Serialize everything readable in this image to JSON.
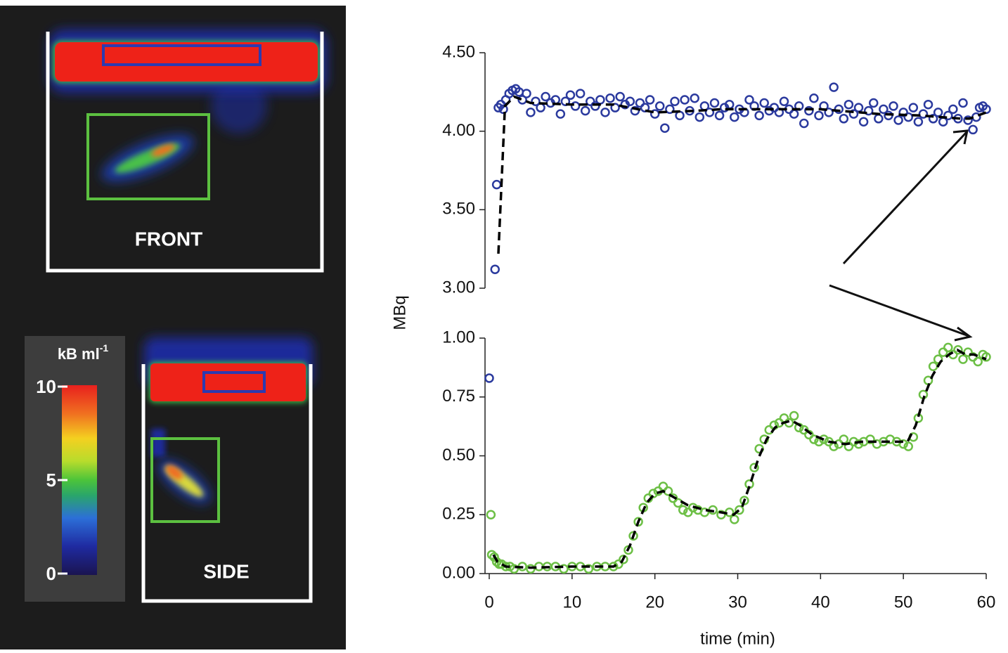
{
  "images": {
    "front_label": "FRONT",
    "side_label": "SIDE",
    "colorbar": {
      "unit": "kB ml",
      "unit_sup": "-1",
      "ticks": [
        0,
        5,
        10
      ],
      "lim": [
        0,
        10
      ]
    }
  },
  "chart_data": [
    {
      "type": "scatter",
      "xlim": [
        0,
        60
      ],
      "ylim": [
        3.0,
        4.5
      ],
      "yticks": [
        {
          "value": 3.0,
          "label": "3.00"
        },
        {
          "value": 3.5,
          "label": "3.50"
        },
        {
          "value": 4.0,
          "label": "4.00"
        },
        {
          "value": 4.5,
          "label": "4.50"
        }
      ],
      "series": [
        {
          "kind": "scatter",
          "color": "#2b3a9e",
          "x": [
            0.7,
            0.9,
            1.1,
            1.4,
            1.7,
            2.0,
            2.4,
            2.8,
            3.2,
            3.6,
            4.0,
            4.5,
            5.0,
            5.6,
            6.2,
            6.8,
            7.4,
            8.0,
            8.6,
            9.2,
            9.8,
            10.4,
            11.0,
            11.6,
            12.2,
            12.8,
            13.4,
            14.0,
            14.6,
            15.2,
            15.8,
            16.4,
            17.0,
            17.6,
            18.2,
            18.8,
            19.4,
            20.0,
            20.6,
            21.2,
            21.8,
            22.4,
            23.0,
            23.6,
            24.2,
            24.8,
            25.4,
            26.0,
            26.6,
            27.2,
            27.8,
            28.4,
            29.0,
            29.6,
            30.2,
            30.8,
            31.4,
            32.0,
            32.6,
            33.2,
            33.8,
            34.4,
            35.0,
            35.6,
            36.2,
            36.8,
            37.4,
            38.0,
            38.6,
            39.2,
            39.8,
            40.4,
            41.0,
            41.6,
            42.2,
            42.8,
            43.4,
            44.0,
            44.6,
            45.2,
            45.8,
            46.4,
            47.0,
            47.6,
            48.2,
            48.8,
            49.4,
            50.0,
            50.6,
            51.2,
            51.8,
            52.4,
            53.0,
            53.6,
            54.2,
            54.8,
            55.4,
            56.0,
            56.6,
            57.2,
            57.8,
            58.4,
            58.8,
            59.2,
            59.6,
            60.0
          ],
          "values": [
            3.12,
            3.66,
            4.15,
            4.17,
            4.14,
            4.2,
            4.24,
            4.26,
            4.27,
            4.25,
            4.2,
            4.24,
            4.12,
            4.19,
            4.15,
            4.22,
            4.18,
            4.2,
            4.11,
            4.19,
            4.23,
            4.16,
            4.24,
            4.13,
            4.19,
            4.16,
            4.2,
            4.12,
            4.21,
            4.15,
            4.22,
            4.17,
            4.19,
            4.13,
            4.18,
            4.15,
            4.2,
            4.11,
            4.16,
            4.02,
            4.14,
            4.19,
            4.1,
            4.2,
            4.13,
            4.21,
            4.09,
            4.16,
            4.12,
            4.18,
            4.1,
            4.15,
            4.17,
            4.09,
            4.14,
            4.12,
            4.2,
            4.16,
            4.1,
            4.18,
            4.13,
            4.15,
            4.12,
            4.19,
            4.14,
            4.11,
            4.16,
            4.05,
            4.13,
            4.21,
            4.1,
            4.16,
            4.12,
            4.28,
            4.14,
            4.08,
            4.17,
            4.11,
            4.15,
            4.06,
            4.13,
            4.18,
            4.08,
            4.14,
            4.1,
            4.16,
            4.07,
            4.12,
            4.09,
            4.15,
            4.06,
            4.11,
            4.17,
            4.08,
            4.12,
            4.06,
            4.1,
            4.14,
            4.08,
            4.18,
            4.07,
            4.01,
            4.09,
            4.15,
            4.16,
            4.14
          ]
        },
        {
          "kind": "line",
          "color": "#000000",
          "x": [
            1.1,
            1.9,
            3,
            5,
            10,
            15,
            20,
            25,
            28,
            35,
            40,
            47,
            52,
            57,
            58,
            60
          ],
          "values": [
            3.22,
            4.16,
            4.22,
            4.18,
            4.17,
            4.17,
            4.12,
            4.13,
            4.14,
            4.14,
            4.14,
            4.11,
            4.1,
            4.08,
            4.08,
            4.12
          ]
        }
      ]
    },
    {
      "type": "scatter",
      "xlim": [
        0,
        60
      ],
      "ylim": [
        0,
        1
      ],
      "xlabel": "time (min)",
      "ylabel": "MBq",
      "xticks": [
        0,
        10,
        20,
        30,
        40,
        50,
        60
      ],
      "yticks": [
        {
          "value": 0,
          "label": "0.00"
        },
        {
          "value": 0.25,
          "label": "0.25"
        },
        {
          "value": 0.5,
          "label": "0.50"
        },
        {
          "value": 0.75,
          "label": "0.75"
        },
        {
          "value": 1,
          "label": "1.00"
        }
      ],
      "series": [
        {
          "kind": "scatter",
          "color": "#6cbf45",
          "x": [
            0.2,
            0.3,
            0.6,
            0.9,
            1.2,
            1.5,
            2,
            2.5,
            3,
            4,
            5,
            6,
            7,
            8,
            9,
            10,
            11,
            12,
            13,
            14,
            15,
            15.6,
            16.2,
            16.8,
            17.4,
            18,
            18.6,
            19.2,
            19.8,
            20.4,
            21,
            21.6,
            22.2,
            22.8,
            23.4,
            24,
            24.6,
            25.2,
            26,
            27,
            28,
            29,
            29.6,
            30.2,
            30.8,
            31.4,
            32,
            32.6,
            33.2,
            33.8,
            34.4,
            35,
            35.6,
            36.2,
            36.8,
            37.4,
            38,
            38.6,
            39.2,
            39.8,
            40.4,
            41,
            41.6,
            42.2,
            42.8,
            43.4,
            44,
            44.6,
            45.2,
            46,
            46.8,
            47.6,
            48.4,
            49.2,
            50,
            50.6,
            51.2,
            51.8,
            52.4,
            53,
            53.6,
            54.2,
            54.8,
            55.4,
            56,
            56.6,
            57.2,
            57.8,
            58.4,
            59,
            59.6,
            60
          ],
          "values": [
            0.25,
            0.08,
            0.07,
            0.05,
            0.04,
            0.04,
            0.03,
            0.03,
            0.02,
            0.03,
            0.02,
            0.03,
            0.03,
            0.03,
            0.02,
            0.03,
            0.03,
            0.02,
            0.03,
            0.03,
            0.03,
            0.04,
            0.06,
            0.1,
            0.16,
            0.22,
            0.28,
            0.32,
            0.34,
            0.35,
            0.37,
            0.35,
            0.32,
            0.3,
            0.27,
            0.26,
            0.28,
            0.27,
            0.26,
            0.27,
            0.25,
            0.26,
            0.23,
            0.27,
            0.31,
            0.38,
            0.45,
            0.53,
            0.57,
            0.61,
            0.63,
            0.64,
            0.66,
            0.64,
            0.67,
            0.62,
            0.61,
            0.59,
            0.57,
            0.56,
            0.57,
            0.56,
            0.54,
            0.55,
            0.57,
            0.54,
            0.56,
            0.55,
            0.56,
            0.57,
            0.55,
            0.56,
            0.57,
            0.56,
            0.55,
            0.54,
            0.58,
            0.66,
            0.76,
            0.82,
            0.88,
            0.91,
            0.94,
            0.96,
            0.93,
            0.95,
            0.91,
            0.94,
            0.92,
            0.9,
            0.93,
            0.92
          ]
        },
        {
          "kind": "line",
          "color": "#000000",
          "x": [
            0.5,
            1,
            2,
            5,
            10,
            15,
            16,
            17,
            18,
            19,
            20,
            21,
            22,
            24,
            26,
            28,
            29.5,
            30.5,
            31.5,
            32.5,
            33.5,
            34.5,
            35.5,
            36.5,
            37.5,
            39,
            41,
            43,
            45,
            47,
            49,
            50.5,
            51.5,
            52.5,
            53.5,
            54.5,
            55.5,
            56.5,
            57.5,
            58.5,
            60
          ],
          "values": [
            0.08,
            0.05,
            0.03,
            0.025,
            0.03,
            0.03,
            0.05,
            0.12,
            0.22,
            0.3,
            0.34,
            0.35,
            0.33,
            0.29,
            0.27,
            0.26,
            0.25,
            0.28,
            0.38,
            0.49,
            0.57,
            0.62,
            0.64,
            0.65,
            0.63,
            0.59,
            0.56,
            0.55,
            0.56,
            0.56,
            0.56,
            0.56,
            0.63,
            0.75,
            0.84,
            0.9,
            0.93,
            0.95,
            0.93,
            0.93,
            0.91
          ]
        },
        {
          "kind": "scatter",
          "color": "#2b3a9e",
          "x": [
            0
          ],
          "values": [
            0.83
          ]
        }
      ]
    }
  ]
}
